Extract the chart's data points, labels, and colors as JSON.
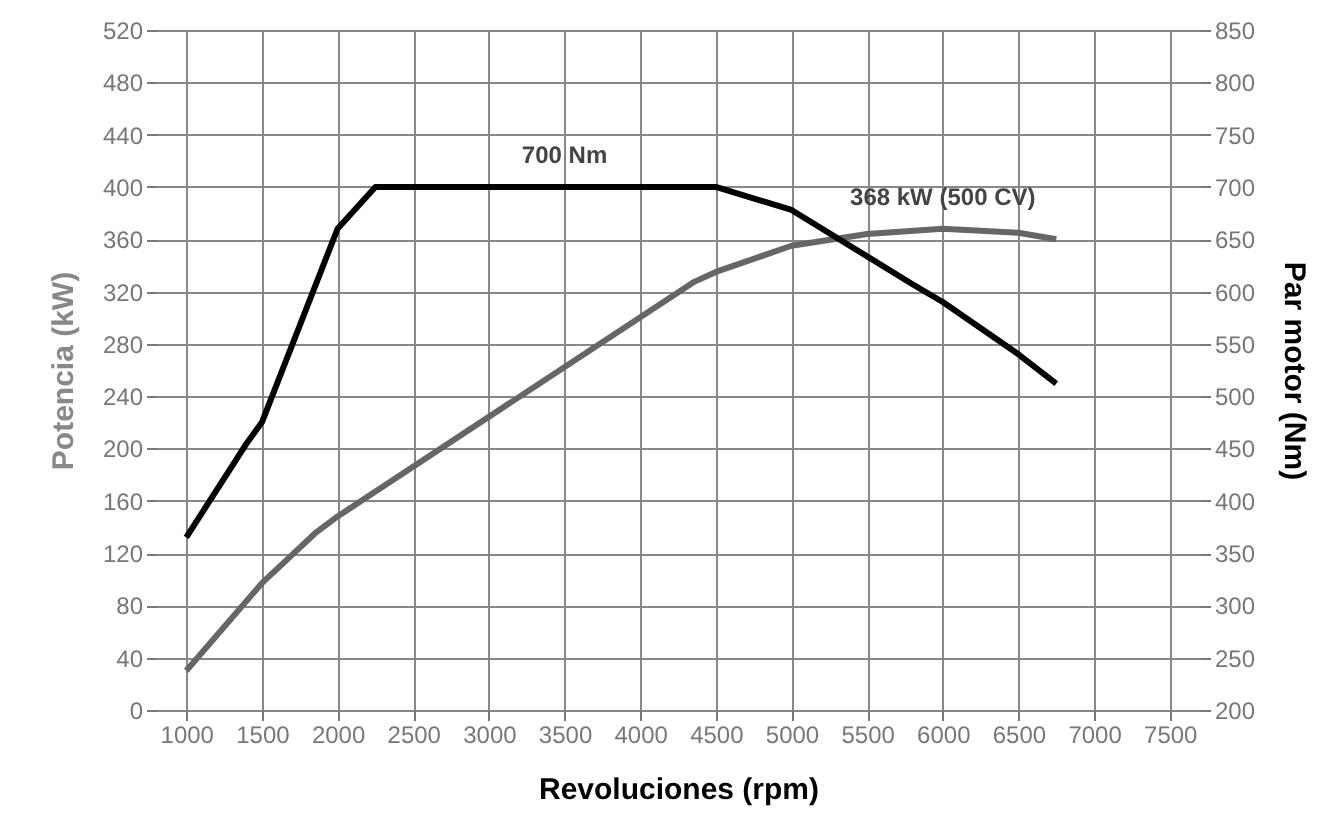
{
  "chart_data": {
    "type": "line",
    "xlabel": "Revoluciones (rpm)",
    "ylabel": "Potencia (kW)",
    "y2label": "Par motor (Nm)",
    "xlim": [
      800,
      7700
    ],
    "xticks": [
      1000,
      1500,
      2000,
      2500,
      3000,
      3500,
      4000,
      4500,
      5000,
      5500,
      6000,
      6500,
      7000,
      7500
    ],
    "ylim": [
      0,
      520
    ],
    "yticks": [
      0,
      40,
      80,
      120,
      160,
      200,
      240,
      280,
      320,
      360,
      400,
      440,
      480,
      520
    ],
    "y2lim": [
      200,
      850
    ],
    "y2ticks": [
      200,
      250,
      300,
      350,
      400,
      450,
      500,
      550,
      600,
      650,
      700,
      750,
      800,
      850
    ],
    "grid": true,
    "series": [
      {
        "color": "#666666",
        "x": [
          1000,
          1500,
          1850,
          2000,
          4350,
          4500,
          5000,
          5500,
          6000,
          6500,
          6750
        ],
        "values": [
          30,
          97,
          135,
          148,
          327,
          335,
          355,
          364,
          368,
          365,
          360
        ]
      },
      {
        "color": "#000000",
        "axis": "y2",
        "x": [
          1000,
          1400,
          1500,
          2000,
          2250,
          4500,
          5000,
          5800,
          6000,
          6500,
          6750
        ],
        "values": [
          365,
          455,
          475,
          660,
          700,
          700,
          678,
          607,
          590,
          540,
          512
        ]
      }
    ],
    "annotations": [
      {
        "text": "700 Nm",
        "x": 3500,
        "y": 400
      },
      {
        "text": "368 kW (500 CV)",
        "x": 6000,
        "y": 368
      }
    ]
  }
}
